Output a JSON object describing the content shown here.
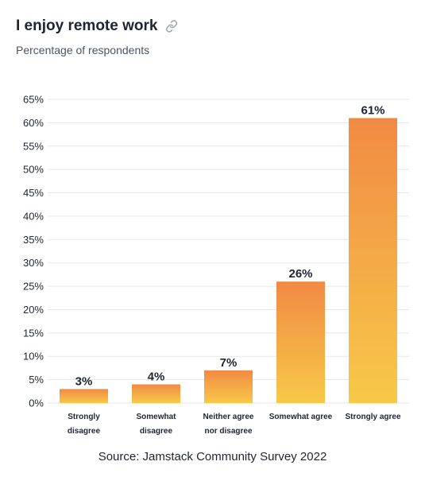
{
  "header": {
    "title": "I enjoy remote work",
    "subtitle": "Percentage of respondents",
    "link_icon": "link-icon"
  },
  "footer": {
    "source": "Source: Jamstack Community Survey 2022"
  },
  "colors": {
    "bar_top": "#f18a44",
    "bar_bottom": "#f7c948",
    "grid": "#e5e7eb",
    "axis_text": "#1f2430"
  },
  "chart_data": {
    "type": "bar",
    "categories": [
      [
        "Strongly",
        "disagree"
      ],
      [
        "Somewhat",
        "disagree"
      ],
      [
        "Neither agree",
        "nor disagree"
      ],
      [
        "Somewhat agree"
      ],
      [
        "Strongly agree"
      ]
    ],
    "values": [
      3,
      4,
      7,
      26,
      61
    ],
    "data_labels": [
      "3%",
      "4%",
      "7%",
      "26%",
      "61%"
    ],
    "ylim": [
      0,
      65
    ],
    "yticks": [
      0,
      5,
      10,
      15,
      20,
      25,
      30,
      35,
      40,
      45,
      50,
      55,
      60,
      65
    ],
    "ytick_labels": [
      "0%",
      "5%",
      "10%",
      "15%",
      "20%",
      "25%",
      "30%",
      "35%",
      "40%",
      "45%",
      "50%",
      "55%",
      "60%",
      "65%"
    ],
    "grid": true,
    "title": "I enjoy remote work",
    "subtitle": "Percentage of respondents",
    "xlabel": "",
    "ylabel": ""
  }
}
